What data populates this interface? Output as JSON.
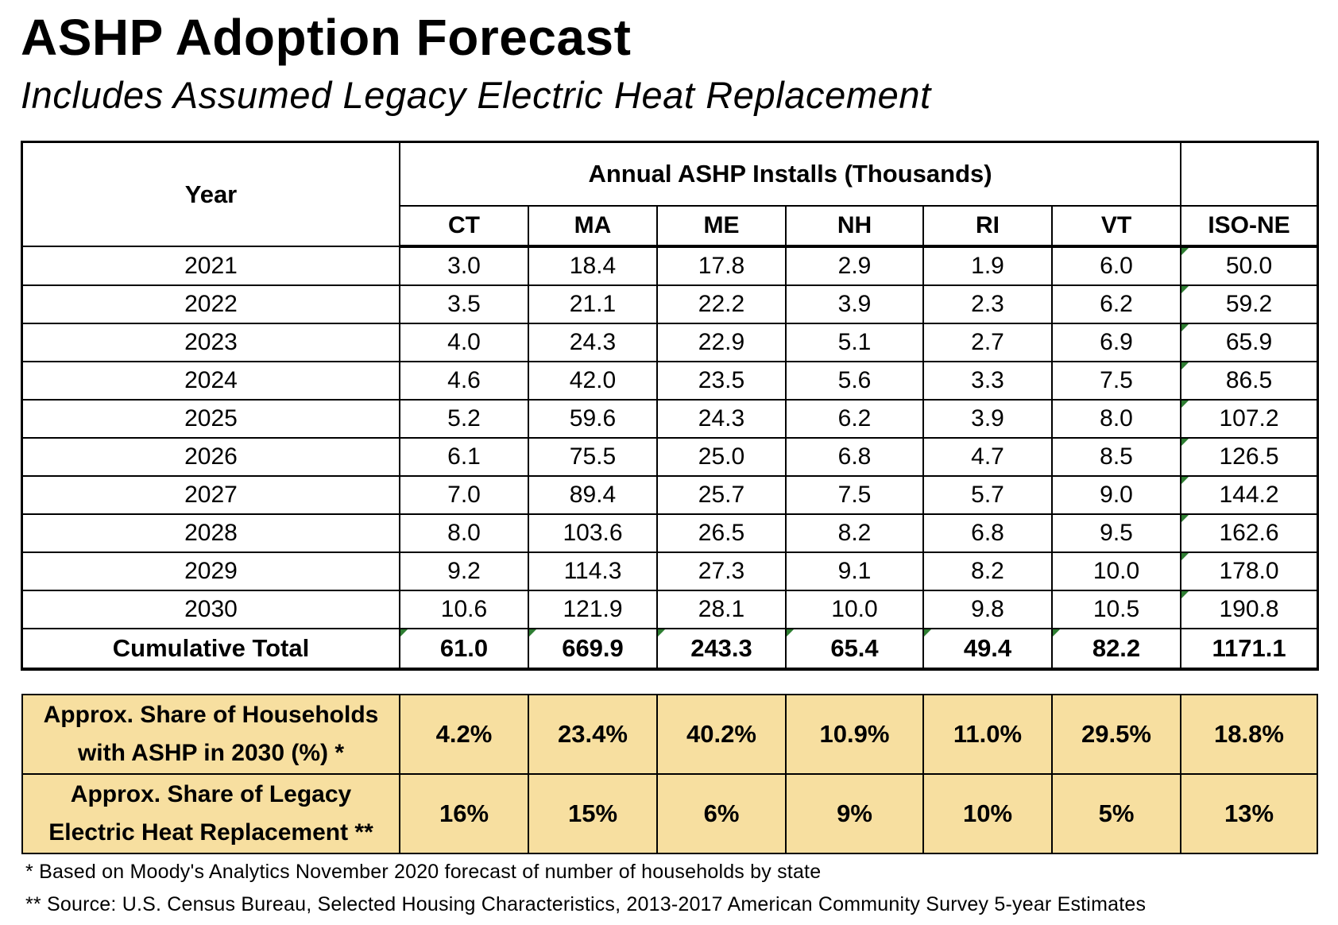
{
  "title": "ASHP Adoption Forecast",
  "subtitle": "Includes Assumed Legacy Electric Heat Replacement",
  "table": {
    "year_header": "Year",
    "group_header": "Annual ASHP Installs (Thousands)",
    "columns": [
      "CT",
      "MA",
      "ME",
      "NH",
      "RI",
      "VT",
      "ISO-NE"
    ],
    "rows": [
      {
        "year": "2021",
        "values": [
          "3.0",
          "18.4",
          "17.8",
          "2.9",
          "1.9",
          "6.0",
          "50.0"
        ]
      },
      {
        "year": "2022",
        "values": [
          "3.5",
          "21.1",
          "22.2",
          "3.9",
          "2.3",
          "6.2",
          "59.2"
        ]
      },
      {
        "year": "2023",
        "values": [
          "4.0",
          "24.3",
          "22.9",
          "5.1",
          "2.7",
          "6.9",
          "65.9"
        ]
      },
      {
        "year": "2024",
        "values": [
          "4.6",
          "42.0",
          "23.5",
          "5.6",
          "3.3",
          "7.5",
          "86.5"
        ]
      },
      {
        "year": "2025",
        "values": [
          "5.2",
          "59.6",
          "24.3",
          "6.2",
          "3.9",
          "8.0",
          "107.2"
        ]
      },
      {
        "year": "2026",
        "values": [
          "6.1",
          "75.5",
          "25.0",
          "6.8",
          "4.7",
          "8.5",
          "126.5"
        ]
      },
      {
        "year": "2027",
        "values": [
          "7.0",
          "89.4",
          "25.7",
          "7.5",
          "5.7",
          "9.0",
          "144.2"
        ]
      },
      {
        "year": "2028",
        "values": [
          "8.0",
          "103.6",
          "26.5",
          "8.2",
          "6.8",
          "9.5",
          "162.6"
        ]
      },
      {
        "year": "2029",
        "values": [
          "9.2",
          "114.3",
          "27.3",
          "9.1",
          "8.2",
          "10.0",
          "178.0"
        ]
      },
      {
        "year": "2030",
        "values": [
          "10.6",
          "121.9",
          "28.1",
          "10.0",
          "9.8",
          "10.5",
          "190.8"
        ]
      }
    ],
    "total": {
      "label": "Cumulative Total",
      "values": [
        "61.0",
        "669.9",
        "243.3",
        "65.4",
        "49.4",
        "82.2",
        "1171.1"
      ]
    }
  },
  "share_table": {
    "rows": [
      {
        "label_line1": "Approx. Share of Households",
        "label_line2": "with ASHP in 2030 (%) *",
        "values": [
          "4.2%",
          "23.4%",
          "40.2%",
          "10.9%",
          "11.0%",
          "29.5%",
          "18.8%"
        ]
      },
      {
        "label_line1": "Approx. Share of Legacy",
        "label_line2": "Electric Heat Replacement **",
        "values": [
          "16%",
          "15%",
          "6%",
          "9%",
          "10%",
          "5%",
          "13%"
        ]
      }
    ],
    "background_color": "#f7dfa0"
  },
  "footnotes": [
    "* Based on Moody's Analytics November 2020 forecast of number of households by state",
    "** Source: U.S. Census Bureau, Selected Housing Characteristics, 2013-2017 American Community Survey 5-year Estimates"
  ],
  "colors": {
    "error_indicator": "#2e7d32"
  }
}
